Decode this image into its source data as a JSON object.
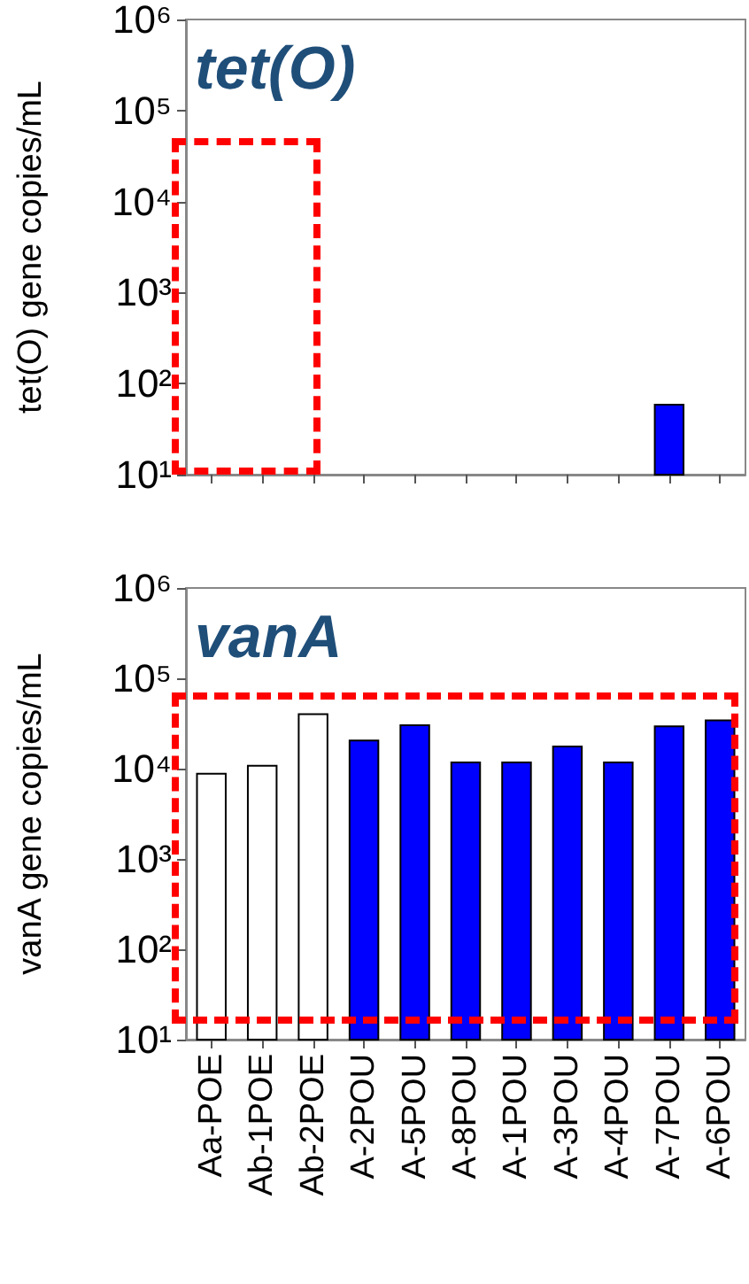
{
  "chart_data": [
    {
      "type": "bar",
      "title": "tet(O)",
      "ylabel": "tet(O) gene copies/mL",
      "categories": [
        null,
        null,
        null,
        null,
        null,
        null,
        null,
        null,
        null,
        null,
        null
      ],
      "values": [
        null,
        null,
        null,
        null,
        null,
        null,
        null,
        null,
        null,
        60,
        null
      ],
      "colors": [
        "#ffffff",
        "#ffffff",
        "#ffffff",
        "#0000ff",
        "#0000ff",
        "#0000ff",
        "#0000ff",
        "#0000ff",
        "#0000ff",
        "#0000ff",
        "#0000ff"
      ],
      "log": true,
      "ylim": [
        10,
        1000000
      ],
      "yticks": [
        {
          "value": 10,
          "label": "10¹"
        },
        {
          "value": 100,
          "label": "10²"
        },
        {
          "value": 1000,
          "label": "10³"
        },
        {
          "value": 10000,
          "label": "10⁴"
        },
        {
          "value": 100000,
          "label": "10⁵"
        },
        {
          "value": 1000000,
          "label": "10⁶"
        }
      ]
    },
    {
      "type": "bar",
      "title": "vanA",
      "ylabel": "vanA gene copies/mL",
      "categories": [
        "Aa-POE",
        "Ab-1POE",
        "Ab-2POE",
        "A-2POU",
        "A-5POU",
        "A-8POU",
        "A-1POU",
        "A-3POU",
        "A-4POU",
        "A-7POU",
        "A-6POU"
      ],
      "values": [
        9000,
        11000,
        41000,
        21000,
        31000,
        12000,
        12000,
        18000,
        12000,
        30000,
        35000
      ],
      "colors": [
        "#ffffff",
        "#ffffff",
        "#ffffff",
        "#0000ff",
        "#0000ff",
        "#0000ff",
        "#0000ff",
        "#0000ff",
        "#0000ff",
        "#0000ff",
        "#0000ff"
      ],
      "log": true,
      "ylim": [
        10,
        1000000
      ],
      "yticks": [
        {
          "value": 10,
          "label": "10¹"
        },
        {
          "value": 100,
          "label": "10²"
        },
        {
          "value": 1000,
          "label": "10³"
        },
        {
          "value": 10000,
          "label": "10⁴"
        },
        {
          "value": 100000,
          "label": "10⁵"
        },
        {
          "value": 1000000,
          "label": "10⁶"
        }
      ]
    }
  ]
}
